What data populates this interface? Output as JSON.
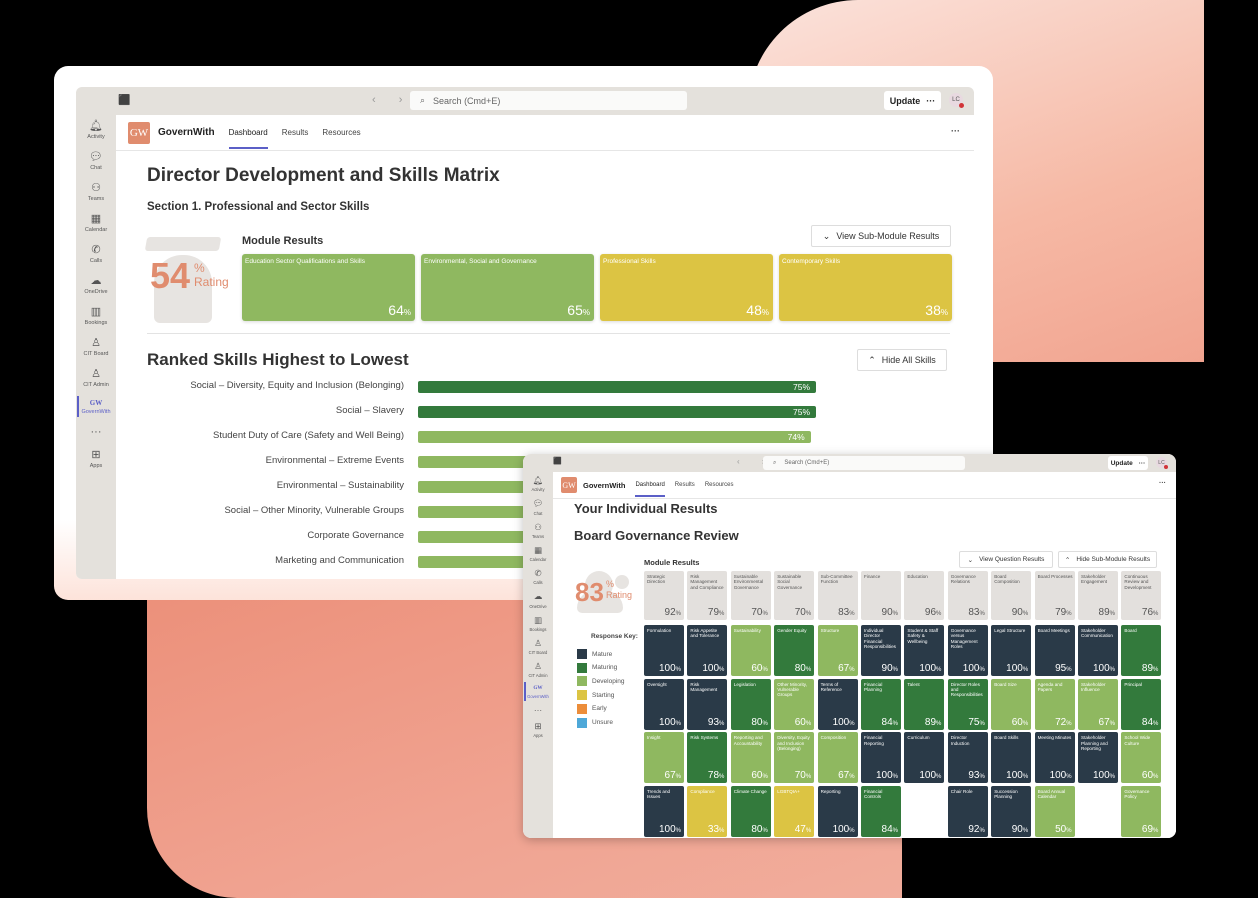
{
  "colors": {
    "mature": "#2a3a48",
    "maturing": "#337a3c",
    "developing": "#8fb860",
    "starting": "#dcc443",
    "early": "#ec8d3a",
    "unsure": "#4ea8d8",
    "accent": "#5b5fc7",
    "brand": "#e08c6e",
    "neutral": "#e3e0dd"
  },
  "teams": {
    "search_placeholder": "Search (Cmd+E)",
    "update_label": "Update",
    "update_more": "···",
    "avatar_initials": "LC",
    "rail": [
      {
        "label": "Activity",
        "icon": "bell-icon",
        "glyph": "🔔︎"
      },
      {
        "label": "Chat",
        "icon": "chat-icon",
        "glyph": "💬︎"
      },
      {
        "label": "Teams",
        "icon": "teams-icon",
        "glyph": "⚇"
      },
      {
        "label": "Calendar",
        "icon": "calendar-icon",
        "glyph": "▦"
      },
      {
        "label": "Calls",
        "icon": "phone-icon",
        "glyph": "✆"
      },
      {
        "label": "OneDrive",
        "icon": "cloud-icon",
        "glyph": "☁"
      },
      {
        "label": "Bookings",
        "icon": "bookings-icon",
        "glyph": "▥"
      },
      {
        "label": "CIT Board",
        "icon": "board-icon",
        "glyph": "♙"
      },
      {
        "label": "CIT Admin",
        "icon": "admin-icon",
        "glyph": "♙"
      },
      {
        "label": "GovernWith",
        "icon": "governwith-icon",
        "glyph": "GW"
      },
      {
        "label": "",
        "icon": "more-icon",
        "glyph": "···"
      },
      {
        "label": "Apps",
        "icon": "apps-icon",
        "glyph": "⊞"
      }
    ]
  },
  "app": {
    "logo": "GW",
    "name": "GovernWith",
    "tabs": [
      "Dashboard",
      "Results",
      "Resources"
    ],
    "active_tab": "Dashboard",
    "more": "···"
  },
  "window1": {
    "title": "Director Development and Skills Matrix",
    "section": "Section 1. Professional and Sector Skills",
    "rating": {
      "value": "54",
      "pct": "%",
      "label": "Rating"
    },
    "module_results_title": "Module Results",
    "view_sub_module_button": "View Sub-Module Results",
    "modules": [
      {
        "title": "Education Sector Qualifications and Skills",
        "value": "64",
        "level": "developing"
      },
      {
        "title": "Environmental, Social and Governance",
        "value": "65",
        "level": "developing"
      },
      {
        "title": "Professional Skills",
        "value": "48",
        "level": "starting"
      },
      {
        "title": "Contemporary Skills",
        "value": "38",
        "level": "starting"
      }
    ],
    "ranked_title": "Ranked Skills Highest to Lowest",
    "hide_all_skills_button": "Hide All Skills",
    "ranked_skills": [
      {
        "label": "Social – Diversity, Equity and Inclusion (Belonging)",
        "value": "75%",
        "pct": 75,
        "level": "maturing"
      },
      {
        "label": "Social – Slavery",
        "value": "75%",
        "pct": 75,
        "level": "maturing"
      },
      {
        "label": "Student Duty of Care (Safety and Well Being)",
        "value": "74%",
        "pct": 74,
        "level": "developing"
      },
      {
        "label": "Environmental – Extreme Events",
        "value": "",
        "pct": 74,
        "level": "developing"
      },
      {
        "label": "Environmental – Sustainability",
        "value": "",
        "pct": 74,
        "level": "developing"
      },
      {
        "label": "Social – Other Minority, Vulnerable Groups",
        "value": "",
        "pct": 74,
        "level": "developing"
      },
      {
        "label": "Corporate Governance",
        "value": "",
        "pct": 74,
        "level": "developing"
      },
      {
        "label": "Marketing and Communication",
        "value": "",
        "pct": 74,
        "level": "developing"
      }
    ]
  },
  "window2": {
    "title": "Your Individual Results",
    "subtitle": "Board Governance Review",
    "rating": {
      "value": "83",
      "pct": "%",
      "label": "Rating"
    },
    "module_results_title": "Module Results",
    "view_question_button": "View Question Results",
    "hide_sub_module_button": "Hide Sub-Module Results",
    "response_key_title": "Response Key:",
    "response_key": [
      {
        "label": "Mature",
        "level": "mature"
      },
      {
        "label": "Maturing",
        "level": "maturing"
      },
      {
        "label": "Developing",
        "level": "developing"
      },
      {
        "label": "Starting",
        "level": "starting"
      },
      {
        "label": "Early",
        "level": "early"
      },
      {
        "label": "Unsure",
        "level": "unsure"
      }
    ],
    "modules": [
      {
        "title": "Strategic Direction",
        "value": "92"
      },
      {
        "title": "Risk Management and Compliance",
        "value": "79"
      },
      {
        "title": "Sustainable Environmental Governance",
        "value": "70"
      },
      {
        "title": "Sustainable Social Governance",
        "value": "70"
      },
      {
        "title": "Sub-Committee Function",
        "value": "83"
      },
      {
        "title": "Finance",
        "value": "90"
      },
      {
        "title": "Education",
        "value": "96"
      },
      {
        "title": "Governance Relations",
        "value": "83"
      },
      {
        "title": "Board Composition",
        "value": "90"
      },
      {
        "title": "Board Processes",
        "value": "79"
      },
      {
        "title": "Stakeholder Engagement",
        "value": "89"
      },
      {
        "title": "Continuous Review and Development",
        "value": "76"
      }
    ],
    "sub_module_rows": [
      [
        {
          "title": "Formulation",
          "value": "100",
          "level": "mature"
        },
        {
          "title": "Risk Appetite and Tolerance",
          "value": "100",
          "level": "mature"
        },
        {
          "title": "Sustainability",
          "value": "60",
          "level": "developing"
        },
        {
          "title": "Gender Equity",
          "value": "80",
          "level": "maturing"
        },
        {
          "title": "Structure",
          "value": "67",
          "level": "developing"
        },
        {
          "title": "Individual Director Financial Responsibilities",
          "value": "90",
          "level": "mature"
        },
        {
          "title": "Student & Staff Safety & Wellbeing",
          "value": "100",
          "level": "mature"
        },
        {
          "title": "Governance versus Management Roles",
          "value": "100",
          "level": "mature"
        },
        {
          "title": "Legal Structure",
          "value": "100",
          "level": "mature"
        },
        {
          "title": "Board Meetings",
          "value": "95",
          "level": "mature"
        },
        {
          "title": "Stakeholder Communication",
          "value": "100",
          "level": "mature"
        },
        {
          "title": "Board",
          "value": "89",
          "level": "maturing"
        }
      ],
      [
        {
          "title": "Oversight",
          "value": "100",
          "level": "mature"
        },
        {
          "title": "Risk Management",
          "value": "93",
          "level": "mature"
        },
        {
          "title": "Legislation",
          "value": "80",
          "level": "maturing"
        },
        {
          "title": "Other Minority, Vulnerable Groups",
          "value": "60",
          "level": "developing"
        },
        {
          "title": "Terms of Reference",
          "value": "100",
          "level": "mature"
        },
        {
          "title": "Financial Planning",
          "value": "84",
          "level": "maturing"
        },
        {
          "title": "Talent",
          "value": "89",
          "level": "maturing"
        },
        {
          "title": "Director Roles and Responsibilities",
          "value": "75",
          "level": "maturing"
        },
        {
          "title": "Board Size",
          "value": "60",
          "level": "developing"
        },
        {
          "title": "Agenda and Papers",
          "value": "72",
          "level": "developing"
        },
        {
          "title": "Stakeholder Influence",
          "value": "67",
          "level": "developing"
        },
        {
          "title": "Principal",
          "value": "84",
          "level": "maturing"
        }
      ],
      [
        {
          "title": "Insight",
          "value": "67",
          "level": "developing"
        },
        {
          "title": "Risk Systems",
          "value": "78",
          "level": "maturing"
        },
        {
          "title": "Reporting and Accountability",
          "value": "60",
          "level": "developing"
        },
        {
          "title": "Diversity, Equity and Inclusion (Belonging)",
          "value": "70",
          "level": "developing"
        },
        {
          "title": "Composition",
          "value": "67",
          "level": "developing"
        },
        {
          "title": "Financial Reporting",
          "value": "100",
          "level": "mature"
        },
        {
          "title": "Curriculum",
          "value": "100",
          "level": "mature"
        },
        {
          "title": "Director Induction",
          "value": "93",
          "level": "mature"
        },
        {
          "title": "Board Skills",
          "value": "100",
          "level": "mature"
        },
        {
          "title": "Meeting Minutes",
          "value": "100",
          "level": "mature"
        },
        {
          "title": "Stakeholder Planning and Reporting",
          "value": "100",
          "level": "mature"
        },
        {
          "title": "School Wide Culture",
          "value": "60",
          "level": "developing"
        }
      ],
      [
        {
          "title": "Trends and Issues",
          "value": "100",
          "level": "mature"
        },
        {
          "title": "Compliance",
          "value": "33",
          "level": "starting"
        },
        {
          "title": "Climate Change",
          "value": "80",
          "level": "maturing"
        },
        {
          "title": "LGBTQIA+",
          "value": "47",
          "level": "starting"
        },
        {
          "title": "Reporting",
          "value": "100",
          "level": "mature"
        },
        {
          "title": "Financial Controls",
          "value": "84",
          "level": "maturing"
        },
        null,
        {
          "title": "Chair Role",
          "value": "92",
          "level": "mature"
        },
        {
          "title": "Succession Planning",
          "value": "90",
          "level": "mature"
        },
        {
          "title": "Board Annual Calendar",
          "value": "50",
          "level": "developing"
        },
        null,
        {
          "title": "Governance Policy",
          "value": "69",
          "level": "developing"
        }
      ]
    ]
  }
}
